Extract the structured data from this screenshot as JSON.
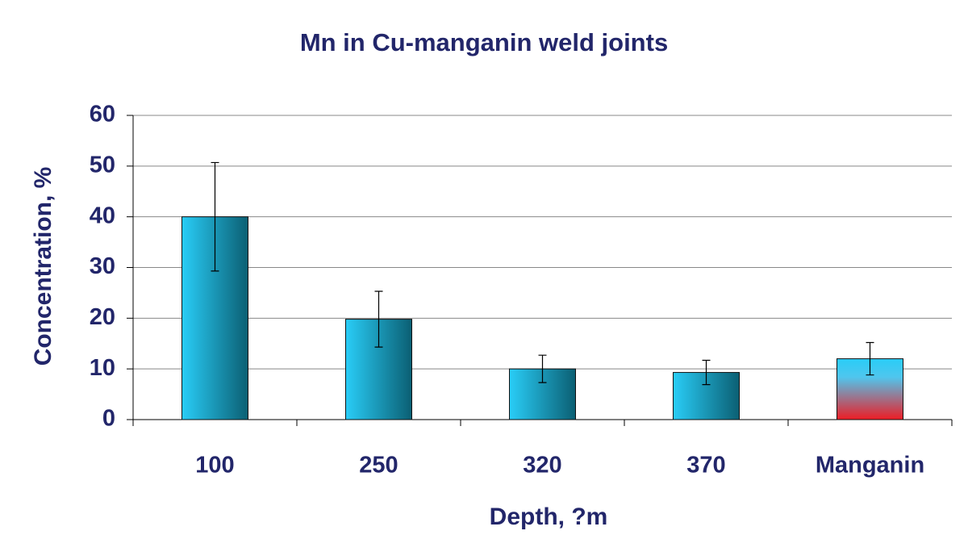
{
  "chart_data": {
    "type": "bar",
    "title": "Mn in Cu-manganin weld joints",
    "x_label": "Depth, ?m",
    "y_label": "Concentration, %",
    "categories": [
      "100",
      "250",
      "320",
      "370",
      "Manganin"
    ],
    "values": [
      40,
      19.8,
      10,
      9.3,
      12
    ],
    "errors": [
      10.7,
      5.5,
      2.7,
      2.4,
      3.2
    ],
    "colors": [
      "#0b5f73",
      "#0b5f73",
      "#0b5f73",
      "#0b5f73",
      "#ee1c24"
    ],
    "ylim": [
      0,
      60
    ],
    "yticks": [
      0,
      10,
      20,
      30,
      40,
      50,
      60
    ],
    "grid": true
  }
}
